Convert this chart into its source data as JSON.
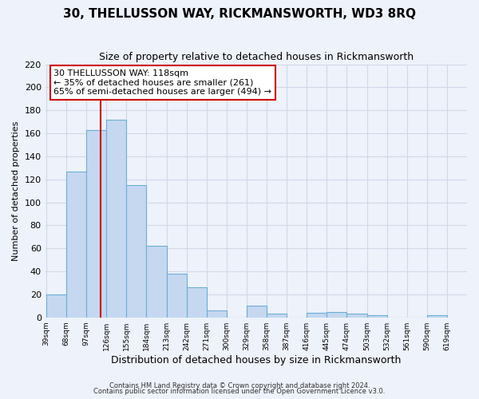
{
  "title": "30, THELLUSSON WAY, RICKMANSWORTH, WD3 8RQ",
  "subtitle": "Size of property relative to detached houses in Rickmansworth",
  "bar_values": [
    20,
    127,
    163,
    172,
    115,
    62,
    38,
    26,
    6,
    0,
    10,
    3,
    0,
    4,
    5,
    3,
    2,
    0,
    0,
    2
  ],
  "bin_left_edges": [
    39,
    68,
    97,
    126,
    155,
    184,
    213,
    242,
    271,
    300,
    329,
    358,
    387,
    416,
    445,
    474,
    503,
    532,
    561,
    590
  ],
  "bin_width": 29,
  "x_tick_positions": [
    39,
    68,
    97,
    126,
    155,
    184,
    213,
    242,
    271,
    300,
    329,
    358,
    387,
    416,
    445,
    474,
    503,
    532,
    561,
    590,
    619
  ],
  "x_labels": [
    "39sqm",
    "68sqm",
    "97sqm",
    "126sqm",
    "155sqm",
    "184sqm",
    "213sqm",
    "242sqm",
    "271sqm",
    "300sqm",
    "329sqm",
    "358sqm",
    "387sqm",
    "416sqm",
    "445sqm",
    "474sqm",
    "503sqm",
    "532sqm",
    "561sqm",
    "590sqm",
    "619sqm"
  ],
  "bar_color": "#c5d8f0",
  "bar_edge_color": "#6baed6",
  "vline_x": 118,
  "vline_color": "#cc0000",
  "ylabel": "Number of detached properties",
  "xlabel": "Distribution of detached houses by size in Rickmansworth",
  "ylim": [
    0,
    220
  ],
  "yticks": [
    0,
    20,
    40,
    60,
    80,
    100,
    120,
    140,
    160,
    180,
    200,
    220
  ],
  "annotation_box_text1": "30 THELLUSSON WAY: 118sqm",
  "annotation_text2": "← 35% of detached houses are smaller (261)",
  "annotation_text3": "65% of semi-detached houses are larger (494) →",
  "annotation_border_color": "#cc0000",
  "footer1": "Contains HM Land Registry data © Crown copyright and database right 2024.",
  "footer2": "Contains public sector information licensed under the Open Government Licence v3.0.",
  "background_color": "#eef2fa",
  "grid_color": "#d0d8e8",
  "title_fontsize": 11,
  "subtitle_fontsize": 9
}
